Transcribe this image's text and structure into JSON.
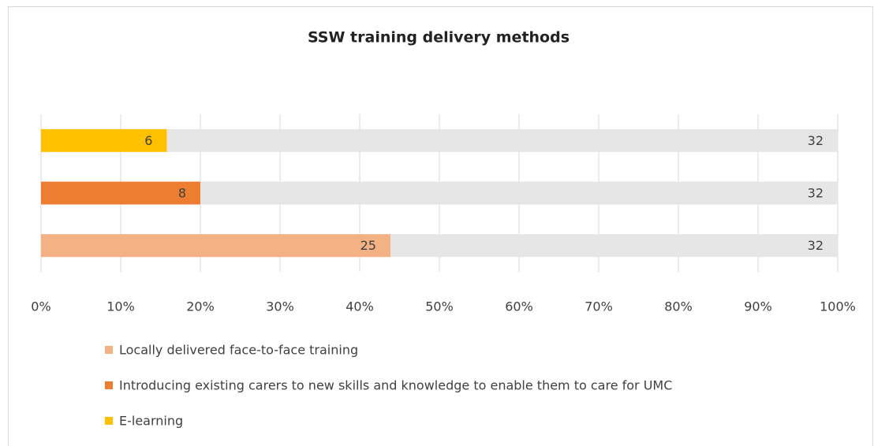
{
  "chart_data": {
    "type": "bar",
    "orientation": "horizontal",
    "stacking": "percent",
    "title": "SSW training delivery methods",
    "categories": [
      "Locally delivered face-to-face training",
      "Introducing existing carers to new skills and knowledge to enable them to care for UMC",
      "E-learning"
    ],
    "series": [
      {
        "colors": [
          "#f4b183",
          "#ed7d31",
          "#ffc000"
        ],
        "values": [
          25,
          8,
          6
        ]
      },
      {
        "color": "#e6e6e6",
        "values": [
          32,
          32,
          32
        ]
      }
    ],
    "xlim": [
      0,
      100
    ],
    "xticks": [
      {
        "value": 0,
        "label": "0%"
      },
      {
        "value": 10,
        "label": "10%"
      },
      {
        "value": 20,
        "label": "20%"
      },
      {
        "value": 30,
        "label": "30%"
      },
      {
        "value": 40,
        "label": "40%"
      },
      {
        "value": 50,
        "label": "50%"
      },
      {
        "value": 60,
        "label": "60%"
      },
      {
        "value": 70,
        "label": "70%"
      },
      {
        "value": 80,
        "label": "80%"
      },
      {
        "value": 90,
        "label": "90%"
      },
      {
        "value": 100,
        "label": "100%"
      }
    ],
    "grid": true,
    "legend": "bottom-left"
  }
}
